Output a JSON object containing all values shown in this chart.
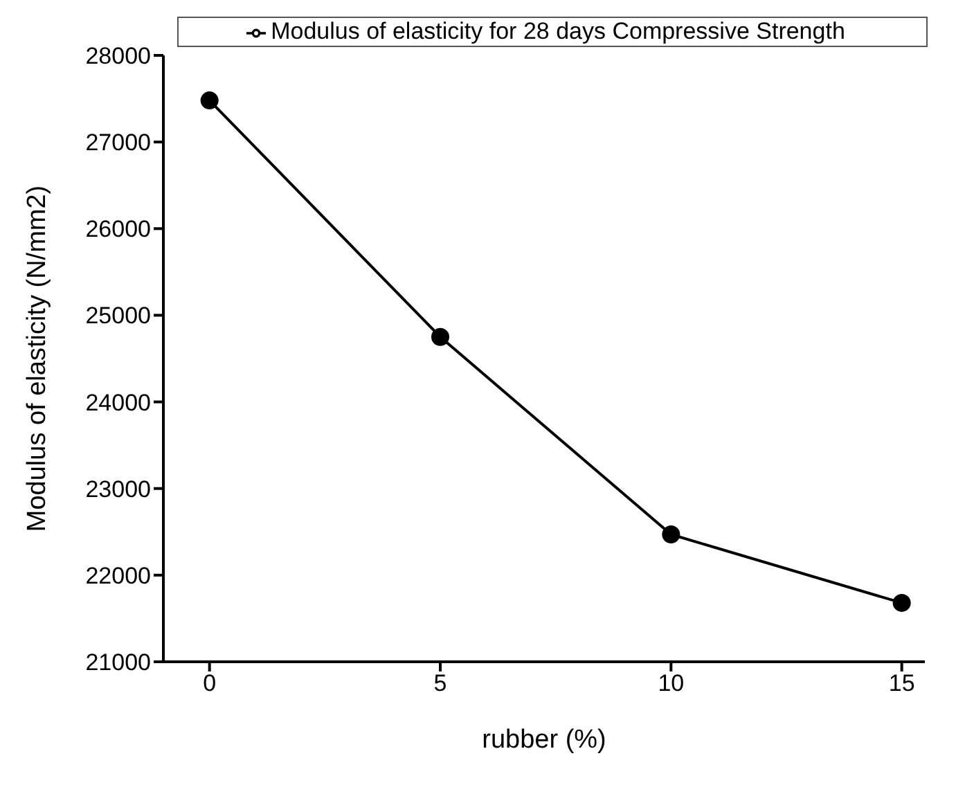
{
  "chart_data": {
    "type": "line",
    "xlabel": "rubber (%)",
    "ylabel": "Modulus of elasticity (N/mm2)",
    "x": [
      0,
      5,
      10,
      15
    ],
    "series": [
      {
        "name": "Modulus of elasticity for 28 days Compressive Strength",
        "color": "#000000",
        "values": [
          27480,
          24750,
          22470,
          21680
        ]
      }
    ],
    "xlim": [
      -1,
      15.5
    ],
    "xticks": [
      0,
      5,
      10,
      15
    ],
    "ylim": [
      21000,
      28000
    ],
    "yticks": [
      21000,
      22000,
      23000,
      24000,
      25000,
      26000,
      27000,
      28000
    ],
    "grid": false,
    "legend": "top",
    "marker": "circle",
    "line_style": "solid"
  }
}
